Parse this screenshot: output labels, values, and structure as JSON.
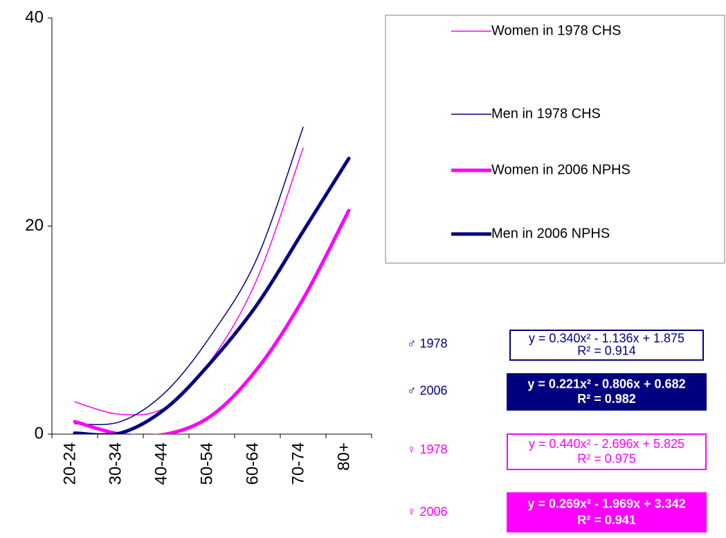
{
  "chart_data": {
    "type": "line",
    "categories": [
      "20-24",
      "30-34",
      "40-44",
      "50-54",
      "60-64",
      "70-74",
      "80+"
    ],
    "series": [
      {
        "name": "Women in 1978 CHS",
        "color": "#ff00ff",
        "line_width": 1.5,
        "values": [
          3.1,
          1.9,
          2.6,
          7.2,
          15,
          27.5,
          null
        ]
      },
      {
        "name": "Men in 1978 CHS",
        "color": "#000080",
        "line_width": 1.5,
        "values": [
          1.0,
          1.2,
          4.1,
          9.6,
          17,
          29.5,
          null
        ]
      },
      {
        "name": "Women in 2006 NPHS",
        "color": "#ff00ff",
        "line_width": 5,
        "values": [
          1.2,
          0,
          0,
          1.8,
          6.3,
          13,
          21.5
        ]
      },
      {
        "name": "Men in 2006 NPHS",
        "color": "#000080",
        "line_width": 5,
        "values": [
          0.1,
          0.1,
          2.5,
          7,
          12.5,
          19.5,
          26.5
        ]
      }
    ],
    "ylim": [
      0,
      40
    ],
    "yticks": [
      0,
      20,
      40
    ],
    "grid": false,
    "annotations": [
      {
        "label": "♂ 1978",
        "lines": [
          "y = 0.340x² - 1.136x + 1.875",
          "R² = 0.914"
        ],
        "color": "#000080",
        "filled": false
      },
      {
        "label": "♂ 2006",
        "lines": [
          "y = 0.221x² - 0.806x + 0.682",
          "R² = 0.982"
        ],
        "color": "#000080",
        "filled": true
      },
      {
        "label": "♀ 1978",
        "lines": [
          "y = 0.440x² - 2.696x + 5.825",
          "R² = 0.975"
        ],
        "color": "#ff00ff",
        "filled": false
      },
      {
        "label": "♀ 2006",
        "lines": [
          "y = 0.269x² - 1.969x + 3.342",
          "R² = 0.941"
        ],
        "color": "#ff00ff",
        "filled": true
      }
    ]
  }
}
